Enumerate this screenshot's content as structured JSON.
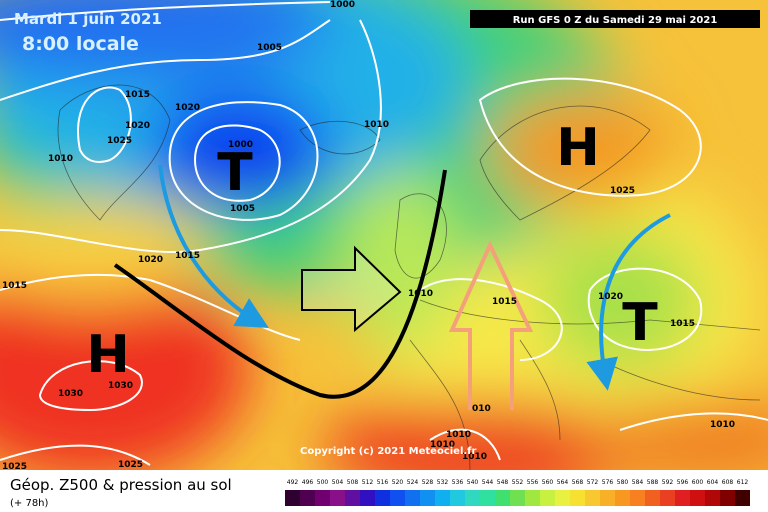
{
  "header": {
    "date": "Mardi 1 juin 2021",
    "time": "8:00 locale",
    "run": "Run GFS 0 Z du Samedi 29 mai 2021"
  },
  "systems": [
    "T",
    "H",
    "H",
    "T"
  ],
  "isobar_labels": [
    "1000",
    "1005",
    "1015",
    "1020",
    "1020",
    "1025",
    "1010",
    "1000",
    "1005",
    "1010",
    "1025",
    "1020",
    "1015",
    "1015",
    "1010",
    "1015",
    "1020",
    "1015",
    "1030",
    "1030",
    "1025",
    "1025",
    "010",
    "1010",
    "1010",
    "1010",
    "1010"
  ],
  "copyright": "Copyright (c) 2021 Meteociel.fr",
  "footer": {
    "title": "Géop. Z500 & pression au sol",
    "lead": "(+ 78h)",
    "scale": [
      492,
      496,
      500,
      504,
      508,
      512,
      516,
      520,
      524,
      528,
      532,
      536,
      540,
      544,
      548,
      552,
      556,
      560,
      564,
      568,
      572,
      576,
      580,
      584,
      588,
      592,
      596,
      600,
      604,
      608,
      612
    ]
  }
}
